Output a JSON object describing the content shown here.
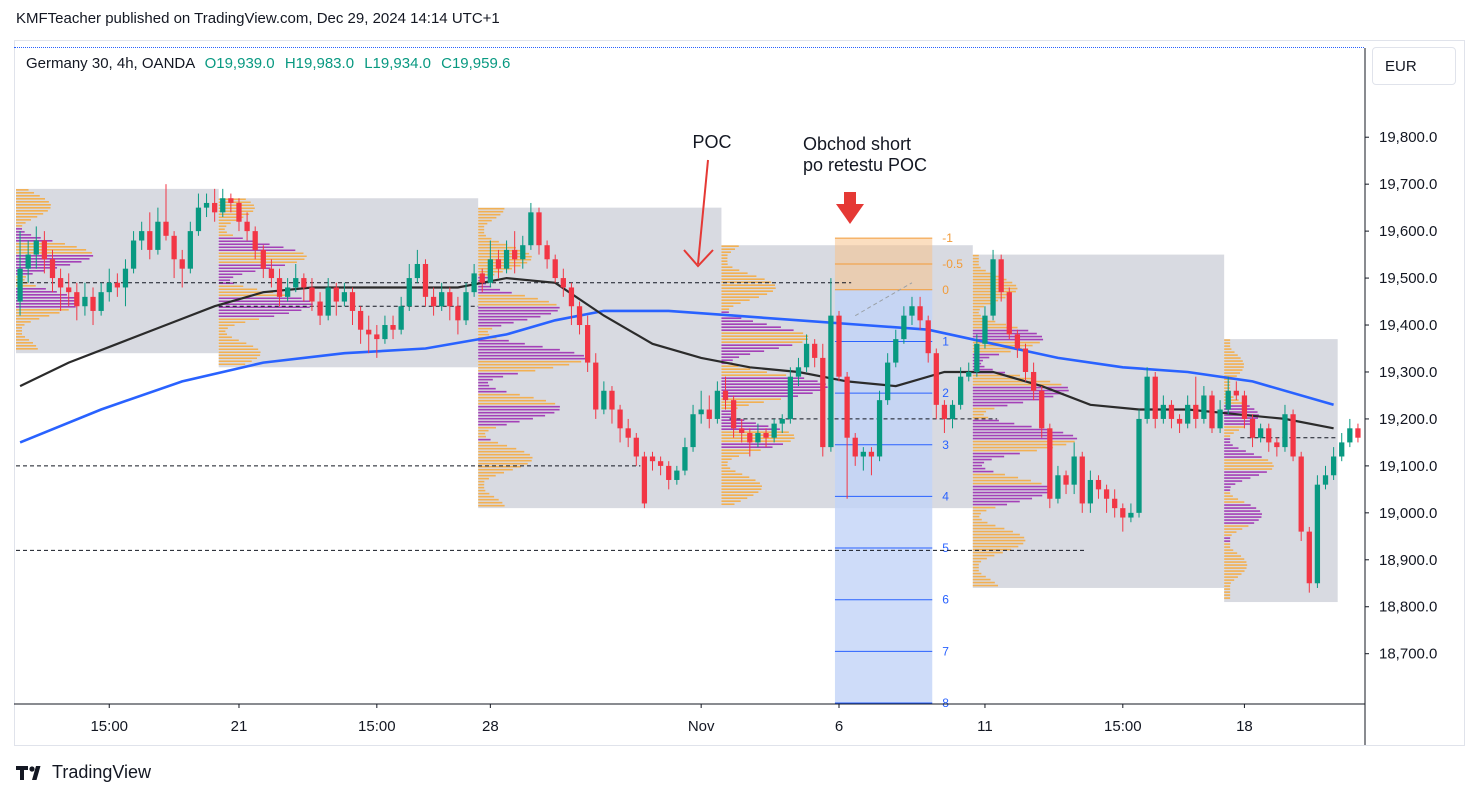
{
  "header": {
    "published": "KMFTeacher published on TradingView.com, Dec 29, 2024 14:14 UTC+1"
  },
  "legend": {
    "symbol": "Germany 30, 4h, OANDA",
    "open": "O19,939.0",
    "high": "H19,983.0",
    "low": "L19,934.0",
    "close": "C19,959.6"
  },
  "currency": "EUR",
  "footer": {
    "brand": "TradingView",
    "logo_icon": "tradingview-logo-icon"
  },
  "annotations": {
    "poc": "POC",
    "trade_line1": "Obchod short",
    "trade_line2": "po retestu POC"
  },
  "colors": {
    "bull": "#089981",
    "bear": "#f23645",
    "ma_fast": "#2b2b2b",
    "ma_slow": "#2962ff",
    "vp_orange": "#f7a93b",
    "vp_purple": "#9c27b0",
    "box_gray": "#d1d4dc",
    "fib_fill": "#c2d3f7",
    "arrow_red": "#e53935"
  },
  "chart_data": {
    "type": "candlestick",
    "timeframe": "4h",
    "y_ticks": [
      19800,
      19700,
      19600,
      19500,
      19400,
      19300,
      19200,
      19100,
      19000,
      18900,
      18800,
      18700
    ],
    "y_tick_labels": [
      "19,800.0",
      "19,700.0",
      "19,600.0",
      "19,500.0",
      "19,400.0",
      "19,300.0",
      "19,200.0",
      "19,100.0",
      "19,000.0",
      "18,900.0",
      "18,800.0",
      "18,700.0"
    ],
    "x_ticks": [
      {
        "label": "15:00",
        "index": 11
      },
      {
        "label": "21",
        "index": 27
      },
      {
        "label": "15:00",
        "index": 44
      },
      {
        "label": "28",
        "index": 58
      },
      {
        "label": "Nov",
        "index": 84
      },
      {
        "label": "6",
        "index": 101
      },
      {
        "label": "11",
        "index": 119
      },
      {
        "label": "15:00",
        "index": 136
      },
      {
        "label": "18",
        "index": 151
      }
    ],
    "candles": [
      [
        19450,
        19520,
        19420,
        19600
      ],
      [
        19520,
        19550,
        19490,
        19580
      ],
      [
        19550,
        19580,
        19520,
        19610
      ],
      [
        19580,
        19540,
        19510,
        19600
      ],
      [
        19540,
        19500,
        19470,
        19560
      ],
      [
        19500,
        19480,
        19430,
        19520
      ],
      [
        19480,
        19470,
        19440,
        19510
      ],
      [
        19470,
        19440,
        19410,
        19490
      ],
      [
        19440,
        19460,
        19420,
        19490
      ],
      [
        19460,
        19430,
        19400,
        19480
      ],
      [
        19430,
        19470,
        19420,
        19490
      ],
      [
        19470,
        19490,
        19450,
        19520
      ],
      [
        19490,
        19480,
        19460,
        19510
      ],
      [
        19480,
        19520,
        19440,
        19540
      ],
      [
        19520,
        19580,
        19510,
        19600
      ],
      [
        19580,
        19600,
        19560,
        19620
      ],
      [
        19600,
        19560,
        19540,
        19640
      ],
      [
        19560,
        19620,
        19550,
        19650
      ],
      [
        19620,
        19590,
        19580,
        19700
      ],
      [
        19590,
        19540,
        19500,
        19600
      ],
      [
        19540,
        19520,
        19480,
        19560
      ],
      [
        19520,
        19600,
        19510,
        19620
      ],
      [
        19600,
        19650,
        19590,
        19680
      ],
      [
        19650,
        19660,
        19630,
        19680
      ],
      [
        19660,
        19640,
        19620,
        19690
      ],
      [
        19640,
        19670,
        19630,
        19690
      ],
      [
        19670,
        19660,
        19640,
        19680
      ],
      [
        19660,
        19620,
        19600,
        19670
      ],
      [
        19620,
        19600,
        19580,
        19640
      ],
      [
        19600,
        19560,
        19540,
        19610
      ],
      [
        19560,
        19520,
        19500,
        19570
      ],
      [
        19520,
        19500,
        19480,
        19540
      ],
      [
        19500,
        19460,
        19440,
        19520
      ],
      [
        19460,
        19480,
        19450,
        19500
      ],
      [
        19480,
        19500,
        19470,
        19530
      ],
      [
        19500,
        19480,
        19450,
        19510
      ],
      [
        19480,
        19450,
        19430,
        19500
      ],
      [
        19450,
        19420,
        19400,
        19470
      ],
      [
        19420,
        19480,
        19410,
        19500
      ],
      [
        19480,
        19450,
        19420,
        19490
      ],
      [
        19450,
        19470,
        19440,
        19490
      ],
      [
        19470,
        19430,
        19400,
        19480
      ],
      [
        19430,
        19390,
        19360,
        19440
      ],
      [
        19390,
        19380,
        19340,
        19420
      ],
      [
        19380,
        19370,
        19330,
        19400
      ],
      [
        19370,
        19400,
        19360,
        19420
      ],
      [
        19400,
        19390,
        19370,
        19420
      ],
      [
        19390,
        19440,
        19380,
        19460
      ],
      [
        19440,
        19500,
        19430,
        19530
      ],
      [
        19500,
        19530,
        19490,
        19560
      ],
      [
        19530,
        19460,
        19440,
        19540
      ],
      [
        19460,
        19440,
        19420,
        19480
      ],
      [
        19440,
        19470,
        19430,
        19490
      ],
      [
        19470,
        19440,
        19410,
        19480
      ],
      [
        19440,
        19410,
        19380,
        19460
      ],
      [
        19410,
        19470,
        19400,
        19490
      ],
      [
        19470,
        19510,
        19460,
        19530
      ],
      [
        19510,
        19490,
        19470,
        19520
      ],
      [
        19490,
        19540,
        19480,
        19580
      ],
      [
        19540,
        19520,
        19500,
        19560
      ],
      [
        19520,
        19560,
        19510,
        19580
      ],
      [
        19560,
        19540,
        19510,
        19600
      ],
      [
        19540,
        19570,
        19520,
        19590
      ],
      [
        19570,
        19640,
        19560,
        19660
      ],
      [
        19640,
        19570,
        19550,
        19650
      ],
      [
        19570,
        19540,
        19520,
        19580
      ],
      [
        19540,
        19500,
        19490,
        19550
      ],
      [
        19500,
        19480,
        19460,
        19520
      ],
      [
        19480,
        19440,
        19400,
        19490
      ],
      [
        19440,
        19400,
        19380,
        19450
      ],
      [
        19400,
        19320,
        19300,
        19420
      ],
      [
        19320,
        19220,
        19200,
        19340
      ],
      [
        19220,
        19260,
        19210,
        19280
      ],
      [
        19260,
        19220,
        19190,
        19270
      ],
      [
        19220,
        19180,
        19150,
        19230
      ],
      [
        19180,
        19160,
        19140,
        19200
      ],
      [
        19160,
        19120,
        19100,
        19170
      ],
      [
        19120,
        19020,
        19010,
        19130
      ],
      [
        19120,
        19110,
        19090,
        19130
      ],
      [
        19110,
        19100,
        19080,
        19120
      ],
      [
        19100,
        19070,
        19050,
        19110
      ],
      [
        19070,
        19090,
        19060,
        19100
      ],
      [
        19090,
        19140,
        19080,
        19160
      ],
      [
        19140,
        19210,
        19130,
        19230
      ],
      [
        19210,
        19220,
        19190,
        19260
      ],
      [
        19220,
        19200,
        19180,
        19250
      ],
      [
        19200,
        19260,
        19190,
        19280
      ],
      [
        19260,
        19240,
        19220,
        19290
      ],
      [
        19240,
        19180,
        19160,
        19250
      ],
      [
        19180,
        19170,
        19150,
        19200
      ],
      [
        19170,
        19150,
        19120,
        19180
      ],
      [
        19150,
        19170,
        19140,
        19190
      ],
      [
        19170,
        19160,
        19140,
        19180
      ],
      [
        19160,
        19190,
        19150,
        19200
      ],
      [
        19190,
        19200,
        19170,
        19210
      ],
      [
        19200,
        19290,
        19190,
        19310
      ],
      [
        19290,
        19310,
        19270,
        19330
      ],
      [
        19310,
        19360,
        19300,
        19380
      ],
      [
        19360,
        19330,
        19310,
        19370
      ],
      [
        19330,
        19140,
        19120,
        19360
      ],
      [
        19140,
        19420,
        19130,
        19500
      ],
      [
        19420,
        19290,
        19280,
        19430
      ],
      [
        19290,
        19160,
        19030,
        19300
      ],
      [
        19160,
        19120,
        19100,
        19170
      ],
      [
        19120,
        19130,
        19090,
        19140
      ],
      [
        19130,
        19120,
        19080,
        19140
      ],
      [
        19120,
        19240,
        19110,
        19260
      ],
      [
        19240,
        19320,
        19230,
        19340
      ],
      [
        19320,
        19370,
        19310,
        19390
      ],
      [
        19370,
        19420,
        19360,
        19440
      ],
      [
        19420,
        19440,
        19400,
        19460
      ],
      [
        19440,
        19410,
        19390,
        19460
      ],
      [
        19410,
        19340,
        19320,
        19420
      ],
      [
        19340,
        19230,
        19200,
        19350
      ],
      [
        19230,
        19200,
        19170,
        19240
      ],
      [
        19200,
        19230,
        19180,
        19240
      ],
      [
        19230,
        19290,
        19220,
        19310
      ],
      [
        19290,
        19300,
        19280,
        19320
      ],
      [
        19300,
        19360,
        19290,
        19380
      ],
      [
        19360,
        19420,
        19350,
        19440
      ],
      [
        19420,
        19540,
        19410,
        19560
      ],
      [
        19540,
        19470,
        19450,
        19550
      ],
      [
        19470,
        19380,
        19370,
        19480
      ],
      [
        19380,
        19350,
        19330,
        19390
      ],
      [
        19350,
        19300,
        19280,
        19360
      ],
      [
        19300,
        19260,
        19240,
        19320
      ],
      [
        19260,
        19180,
        19160,
        19270
      ],
      [
        19180,
        19030,
        19010,
        19190
      ],
      [
        19030,
        19080,
        19020,
        19100
      ],
      [
        19080,
        19060,
        19040,
        19090
      ],
      [
        19060,
        19120,
        19040,
        19150
      ],
      [
        19120,
        19020,
        19000,
        19130
      ],
      [
        19020,
        19070,
        19000,
        19090
      ],
      [
        19070,
        19050,
        19030,
        19080
      ],
      [
        19050,
        19030,
        19000,
        19060
      ],
      [
        19030,
        19010,
        18990,
        19050
      ],
      [
        19010,
        18990,
        18960,
        19020
      ],
      [
        18990,
        19000,
        18980,
        19020
      ],
      [
        19000,
        19200,
        18990,
        19220
      ],
      [
        19200,
        19290,
        19190,
        19310
      ],
      [
        19290,
        19200,
        19180,
        19300
      ],
      [
        19200,
        19230,
        19190,
        19250
      ],
      [
        19230,
        19200,
        19180,
        19240
      ],
      [
        19200,
        19190,
        19170,
        19210
      ],
      [
        19190,
        19230,
        19180,
        19250
      ],
      [
        19230,
        19200,
        19180,
        19290
      ],
      [
        19200,
        19250,
        19190,
        19270
      ],
      [
        19250,
        19180,
        19170,
        19260
      ],
      [
        19180,
        19220,
        19170,
        19240
      ],
      [
        19220,
        19260,
        19210,
        19290
      ],
      [
        19260,
        19250,
        19240,
        19280
      ],
      [
        19250,
        19200,
        19180,
        19260
      ],
      [
        19200,
        19160,
        19140,
        19210
      ],
      [
        19160,
        19180,
        19150,
        19190
      ],
      [
        19180,
        19150,
        19130,
        19190
      ],
      [
        19150,
        19140,
        19120,
        19160
      ],
      [
        19140,
        19210,
        19130,
        19230
      ],
      [
        19210,
        19120,
        19110,
        19220
      ],
      [
        19120,
        18960,
        18940,
        19130
      ],
      [
        18960,
        18850,
        18830,
        18970
      ],
      [
        18850,
        19060,
        18840,
        19080
      ],
      [
        19060,
        19080,
        19050,
        19100
      ],
      [
        19080,
        19120,
        19070,
        19140
      ],
      [
        19120,
        19150,
        19110,
        19170
      ],
      [
        19150,
        19180,
        19140,
        19200
      ],
      [
        19180,
        19160,
        19150,
        19190
      ]
    ],
    "ma_fast": [
      [
        0,
        19270
      ],
      [
        6,
        19320
      ],
      [
        12,
        19360
      ],
      [
        18,
        19400
      ],
      [
        24,
        19440
      ],
      [
        30,
        19470
      ],
      [
        36,
        19480
      ],
      [
        42,
        19480
      ],
      [
        48,
        19480
      ],
      [
        54,
        19480
      ],
      [
        60,
        19500
      ],
      [
        66,
        19490
      ],
      [
        72,
        19420
      ],
      [
        78,
        19360
      ],
      [
        84,
        19330
      ],
      [
        90,
        19310
      ],
      [
        96,
        19300
      ],
      [
        102,
        19280
      ],
      [
        108,
        19270
      ],
      [
        114,
        19300
      ],
      [
        120,
        19300
      ],
      [
        126,
        19270
      ],
      [
        132,
        19230
      ],
      [
        138,
        19220
      ],
      [
        144,
        19220
      ],
      [
        150,
        19210
      ],
      [
        156,
        19200
      ],
      [
        162,
        19180
      ]
    ],
    "ma_slow": [
      [
        0,
        19150
      ],
      [
        10,
        19220
      ],
      [
        20,
        19280
      ],
      [
        30,
        19320
      ],
      [
        40,
        19340
      ],
      [
        50,
        19350
      ],
      [
        60,
        19380
      ],
      [
        66,
        19410
      ],
      [
        72,
        19430
      ],
      [
        80,
        19430
      ],
      [
        88,
        19420
      ],
      [
        96,
        19410
      ],
      [
        104,
        19400
      ],
      [
        112,
        19390
      ],
      [
        120,
        19360
      ],
      [
        128,
        19330
      ],
      [
        136,
        19310
      ],
      [
        144,
        19300
      ],
      [
        152,
        19280
      ],
      [
        162,
        19230
      ]
    ],
    "poc_levels": [
      {
        "price": 19490,
        "from": 0,
        "to": 102
      },
      {
        "price": 19100,
        "from": 0,
        "to": 76
      },
      {
        "price": 18920,
        "from": 0,
        "to": 131
      },
      {
        "price": 19440,
        "from": 25,
        "to": 56
      },
      {
        "price": 19200,
        "from": 88,
        "to": 120
      },
      {
        "price": 19160,
        "from": 151,
        "to": 162
      }
    ],
    "volume_profile_sessions": [
      {
        "from": 0,
        "to": 24,
        "top": 19690,
        "bottom": 19340
      },
      {
        "from": 25,
        "to": 56,
        "top": 19670,
        "bottom": 19310
      },
      {
        "from": 57,
        "to": 86,
        "top": 19650,
        "bottom": 19010
      },
      {
        "from": 87,
        "to": 117,
        "top": 19570,
        "bottom": 19010
      },
      {
        "from": 118,
        "to": 148,
        "top": 19550,
        "bottom": 18840
      },
      {
        "from": 149,
        "to": 162,
        "top": 19370,
        "bottom": 18810
      }
    ],
    "fib_levels": [
      {
        "label": "-1",
        "price": 19585
      },
      {
        "label": "-0.5",
        "price": 19530
      },
      {
        "label": "0",
        "price": 19475
      },
      {
        "label": "1",
        "price": 19365
      },
      {
        "label": "2",
        "price": 19255
      },
      {
        "label": "3",
        "price": 19145
      },
      {
        "label": "4",
        "price": 19035
      },
      {
        "label": "5",
        "price": 18925
      },
      {
        "label": "6",
        "price": 18815
      },
      {
        "label": "7",
        "price": 18705
      },
      {
        "label": "8",
        "price": 18595
      }
    ],
    "fib_range": {
      "from": 101,
      "to": 112
    },
    "y_range": [
      18595,
      19990
    ]
  }
}
